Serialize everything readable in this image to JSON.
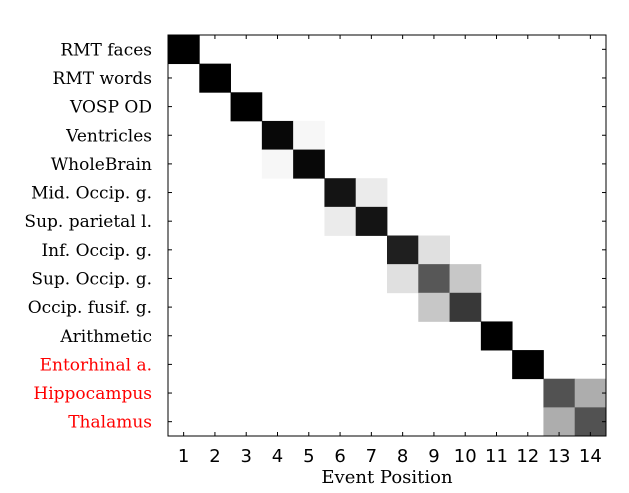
{
  "chart_data": {
    "type": "heatmap",
    "rows": [
      {
        "label": "RMT faces",
        "color": "#000000"
      },
      {
        "label": "RMT words",
        "color": "#000000"
      },
      {
        "label": "VOSP OD",
        "color": "#000000"
      },
      {
        "label": "Ventricles",
        "color": "#000000"
      },
      {
        "label": "WholeBrain",
        "color": "#000000"
      },
      {
        "label": "Mid. Occip. g.",
        "color": "#000000"
      },
      {
        "label": "Sup. parietal l.",
        "color": "#000000"
      },
      {
        "label": "Inf. Occip. g.",
        "color": "#000000"
      },
      {
        "label": "Sup. Occip. g.",
        "color": "#000000"
      },
      {
        "label": "Occip. fusif. g.",
        "color": "#000000"
      },
      {
        "label": "Arithmetic",
        "color": "#000000"
      },
      {
        "label": "Entorhinal a.",
        "color": "#ff0000"
      },
      {
        "label": "Hippocampus",
        "color": "#ff0000"
      },
      {
        "label": "Thalamus",
        "color": "#ff0000"
      }
    ],
    "x_ticks": [
      "1",
      "2",
      "3",
      "4",
      "5",
      "6",
      "7",
      "8",
      "9",
      "10",
      "11",
      "12",
      "13",
      "14"
    ],
    "xlabel": "Event Position",
    "ylabel": "",
    "title": "",
    "colormap": "gray_r",
    "value_range": [
      0,
      1
    ],
    "values": [
      [
        1,
        0,
        0,
        0,
        0,
        0,
        0,
        0,
        0,
        0,
        0,
        0,
        0,
        0
      ],
      [
        0,
        1,
        0,
        0,
        0,
        0,
        0,
        0,
        0,
        0,
        0,
        0,
        0,
        0
      ],
      [
        0,
        0,
        1,
        0,
        0,
        0,
        0,
        0,
        0,
        0,
        0,
        0,
        0,
        0
      ],
      [
        0,
        0,
        0,
        0.97,
        0.03,
        0,
        0,
        0,
        0,
        0,
        0,
        0,
        0,
        0
      ],
      [
        0,
        0,
        0,
        0.03,
        0.97,
        0,
        0,
        0,
        0,
        0,
        0,
        0,
        0,
        0
      ],
      [
        0,
        0,
        0,
        0,
        0,
        0.92,
        0.08,
        0,
        0,
        0,
        0,
        0,
        0,
        0
      ],
      [
        0,
        0,
        0,
        0,
        0,
        0.08,
        0.92,
        0,
        0,
        0,
        0,
        0,
        0,
        0
      ],
      [
        0,
        0,
        0,
        0,
        0,
        0,
        0,
        0.88,
        0.12,
        0,
        0,
        0,
        0,
        0
      ],
      [
        0,
        0,
        0,
        0,
        0,
        0,
        0,
        0.12,
        0.66,
        0.22,
        0,
        0,
        0,
        0
      ],
      [
        0,
        0,
        0,
        0,
        0,
        0,
        0,
        0,
        0.22,
        0.78,
        0,
        0,
        0,
        0
      ],
      [
        0,
        0,
        0,
        0,
        0,
        0,
        0,
        0,
        0,
        0,
        1,
        0,
        0,
        0
      ],
      [
        0,
        0,
        0,
        0,
        0,
        0,
        0,
        0,
        0,
        0,
        0,
        1,
        0,
        0
      ],
      [
        0,
        0,
        0,
        0,
        0,
        0,
        0,
        0,
        0,
        0,
        0,
        0,
        0.68,
        0.32
      ],
      [
        0,
        0,
        0,
        0,
        0,
        0,
        0,
        0,
        0,
        0,
        0,
        0,
        0.32,
        0.68
      ]
    ]
  }
}
